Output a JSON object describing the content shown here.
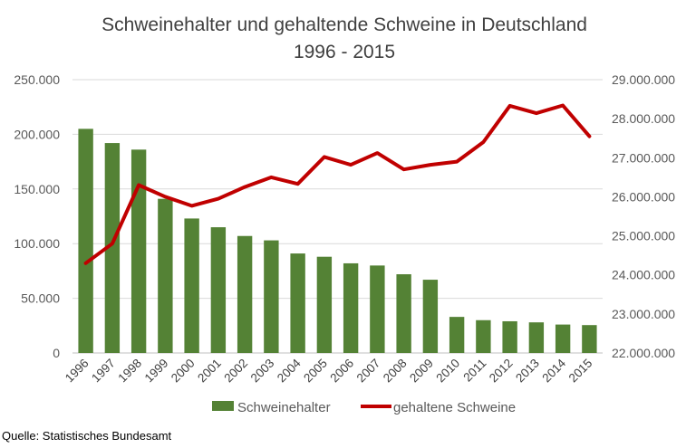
{
  "chart_data": {
    "type": "bar",
    "title": "Schweinehalter und gehaltende Schweine in Deutschland",
    "subtitle": "1996 - 2015",
    "categories": [
      "1996",
      "1997",
      "1998",
      "1999",
      "2000",
      "2001",
      "2002",
      "2003",
      "2004",
      "2005",
      "2006",
      "2007",
      "2008",
      "2009",
      "2010",
      "2011",
      "2012",
      "2013",
      "2014",
      "2015"
    ],
    "series": [
      {
        "name": "Schweinehalter",
        "type": "bar",
        "axis": "left",
        "color": "#548235",
        "values": [
          205000,
          192000,
          186000,
          141000,
          123000,
          115000,
          107000,
          103000,
          91000,
          88000,
          82000,
          80000,
          72000,
          67000,
          33000,
          30000,
          29000,
          28000,
          26000,
          25500
        ]
      },
      {
        "name": "gehaltene Schweine",
        "type": "line",
        "axis": "right",
        "color": "#C00000",
        "values": [
          24300000,
          24800000,
          26300000,
          26000000,
          25770000,
          25950000,
          26250000,
          26500000,
          26330000,
          27020000,
          26820000,
          27120000,
          26700000,
          26820000,
          26900000,
          27400000,
          28330000,
          28140000,
          28340000,
          27550000
        ]
      }
    ],
    "y_left": {
      "min": 0,
      "max": 250000,
      "ticks": [
        0,
        50000,
        100000,
        150000,
        200000,
        250000
      ],
      "tick_labels": [
        "0",
        "50.000",
        "100.000",
        "150.000",
        "200.000",
        "250.000"
      ]
    },
    "y_right": {
      "min": 22000000,
      "max": 29000000,
      "ticks": [
        22000000,
        23000000,
        24000000,
        25000000,
        26000000,
        27000000,
        28000000,
        29000000
      ],
      "tick_labels": [
        "22.000.000",
        "23.000.000",
        "24.000.000",
        "25.000.000",
        "26.000.000",
        "27.000.000",
        "28.000.000",
        "29.000.000"
      ]
    },
    "grid": true,
    "legend_position": "bottom",
    "source": "Quelle: Statistisches Bundesamt"
  }
}
